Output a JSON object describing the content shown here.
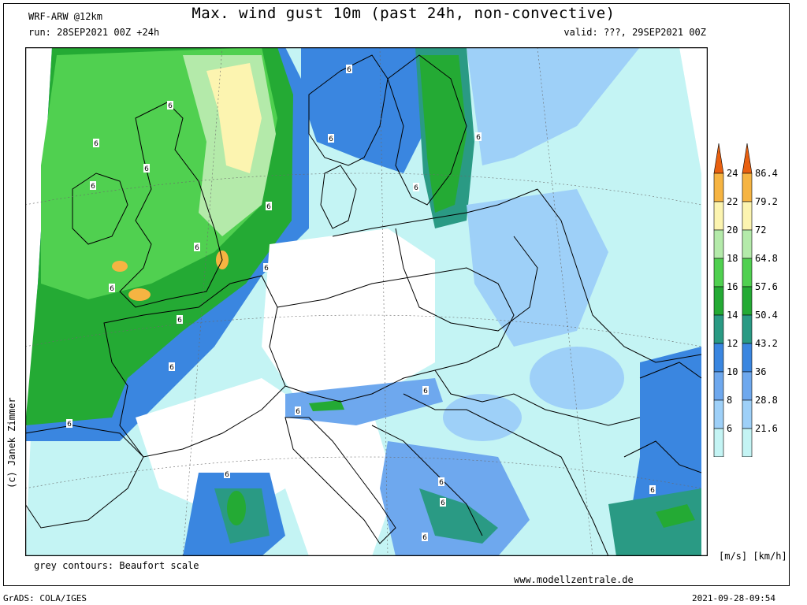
{
  "header": {
    "model": "WRF-ARW @12km",
    "title": "Max. wind gust 10m (past 24h, non-convective)",
    "run": "run: 28SEP2021 00Z +24h",
    "valid": "valid: ???, 29SEP2021 00Z"
  },
  "footer": {
    "contours_note": "grey contours: Beaufort scale",
    "website": "www.modellzentrale.de",
    "software": "GrADS: COLA/IGES",
    "generated": "2021-09-28-09:54",
    "credit": "(c) Janek Zimmer"
  },
  "legend": {
    "units": "[m/s] [km/h]",
    "levels": [
      {
        "ms": "6",
        "kmh": "21.6",
        "color": "#c4f4f4"
      },
      {
        "ms": "8",
        "kmh": "28.8",
        "color": "#9ed0f8"
      },
      {
        "ms": "10",
        "kmh": "36",
        "color": "#6ea8ee"
      },
      {
        "ms": "12",
        "kmh": "43.2",
        "color": "#3a86e0"
      },
      {
        "ms": "14",
        "kmh": "50.4",
        "color": "#2a9a84"
      },
      {
        "ms": "16",
        "kmh": "57.6",
        "color": "#24aa34"
      },
      {
        "ms": "18",
        "kmh": "64.8",
        "color": "#50d050"
      },
      {
        "ms": "20",
        "kmh": "72",
        "color": "#b4eaaa"
      },
      {
        "ms": "22",
        "kmh": "79.2",
        "color": "#fcf4b0"
      },
      {
        "ms": "24",
        "kmh": "86.4",
        "color": "#f6b442"
      }
    ],
    "top_color": "#e86010"
  },
  "map": {
    "contour_label": "6",
    "colors": {
      "bg": "#c4f4f4",
      "calm": "#ffffff",
      "light": "#9ed0f8",
      "moderate": "#6ea8ee",
      "blue": "#3a86e0",
      "teal": "#2a9a84",
      "green": "#24aa34",
      "lightgreen": "#50d050",
      "palegreen": "#b4eaaa",
      "yellow": "#fcf4b0",
      "orange": "#f6b442"
    }
  }
}
